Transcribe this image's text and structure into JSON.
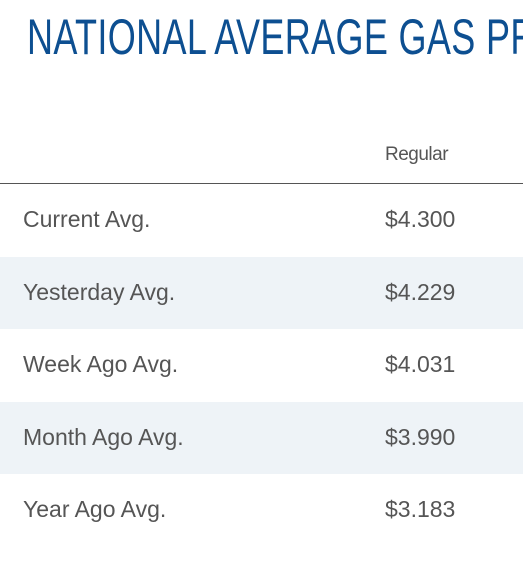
{
  "header": {
    "title": "NATIONAL AVERAGE GAS PR"
  },
  "table": {
    "columns": [
      "Regular"
    ],
    "rows": [
      [
        "Current Avg.",
        "$4.300"
      ],
      [
        "Yesterday Avg.",
        "$4.229"
      ],
      [
        "Week Ago Avg.",
        "$4.031"
      ],
      [
        "Month Ago Avg.",
        "$3.990"
      ],
      [
        "Year Ago Avg.",
        "$3.183"
      ]
    ]
  }
}
